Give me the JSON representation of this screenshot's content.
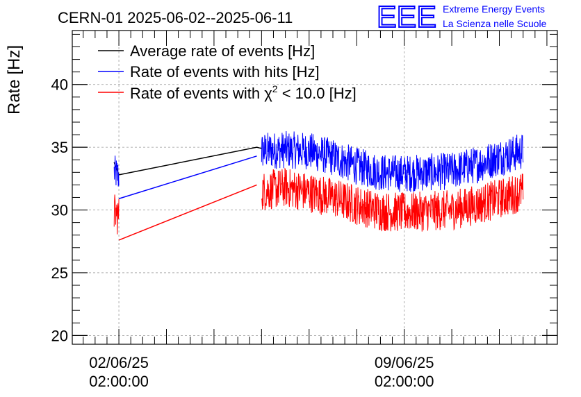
{
  "chart_data": {
    "type": "line",
    "title": "CERN-01 2025-06-02--2025-06-11",
    "xlabel": "",
    "ylabel": "Rate [Hz]",
    "ylim": [
      19.3,
      44.3
    ],
    "yticks": [
      20,
      25,
      30,
      35,
      40
    ],
    "xlim_days": [
      -0.98,
      9.22
    ],
    "xticks": [
      {
        "day": 0,
        "date": "02/06/25",
        "time": "02:00:00"
      },
      {
        "day": 6,
        "date": "09/06/25",
        "time": "02:00:00"
      }
    ],
    "grid": true,
    "legend_position": "top-left",
    "legend": [
      {
        "name": "Average rate of events [Hz]",
        "color": "#000000"
      },
      {
        "name": "Rate of events with hits [Hz]",
        "color": "#0000ff"
      },
      {
        "name": "Rate of events with χ² < 10.0 [Hz]",
        "color": "#ff0000"
      }
    ],
    "legend_chi_parts": {
      "prefix": "Rate of events with ",
      "chi": "χ",
      "sup": "2",
      "suffix": " < 10.0 [Hz]"
    },
    "series": [
      {
        "name": "Average rate of events [Hz]",
        "color": "#000000",
        "x_days": [
          -0.1,
          0.0,
          2.9,
          3.0
        ],
        "values": [
          33.8,
          32.8,
          35.0,
          34.9
        ]
      },
      {
        "name": "Rate of events with hits [Hz]",
        "color": "#0000ff",
        "segments": [
          {
            "x_days": [
              -0.1,
              0.0
            ],
            "center": [
              33.0,
              32.7
            ],
            "spread": 1.4
          },
          {
            "x_days": [
              3.0,
              3.5,
              4.0,
              4.5,
              5.0,
              5.5,
              6.0,
              6.5,
              7.0,
              7.5,
              8.0,
              8.5
            ],
            "center": [
              34.7,
              34.8,
              34.7,
              34.2,
              33.5,
              33.0,
              32.9,
              33.0,
              33.1,
              33.6,
              34.2,
              34.7
            ],
            "spread": 1.5
          }
        ],
        "connector": {
          "x_days": [
            0.0,
            2.9
          ],
          "values": [
            30.9,
            34.3
          ]
        }
      },
      {
        "name": "Rate of events with χ² < 10.0 [Hz]",
        "color": "#ff0000",
        "segments": [
          {
            "x_days": [
              -0.1,
              0.0
            ],
            "center": [
              29.8,
              29.5
            ],
            "spread": 1.6
          },
          {
            "x_days": [
              3.0,
              3.5,
              4.0,
              4.5,
              5.0,
              5.5,
              6.0,
              6.5,
              7.0,
              7.5,
              8.0,
              8.5
            ],
            "center": [
              31.5,
              31.8,
              31.4,
              31.0,
              30.4,
              29.9,
              29.8,
              29.9,
              30.0,
              30.4,
              30.9,
              31.5
            ],
            "spread": 1.6
          }
        ],
        "connector": {
          "x_days": [
            0.0,
            2.9
          ],
          "values": [
            27.6,
            32.0
          ]
        }
      }
    ]
  },
  "branding": {
    "logo_text": "EEE",
    "line1": "Extreme Energy Events",
    "line2": "La Scienza nelle Scuole",
    "color": "#0000ff"
  }
}
